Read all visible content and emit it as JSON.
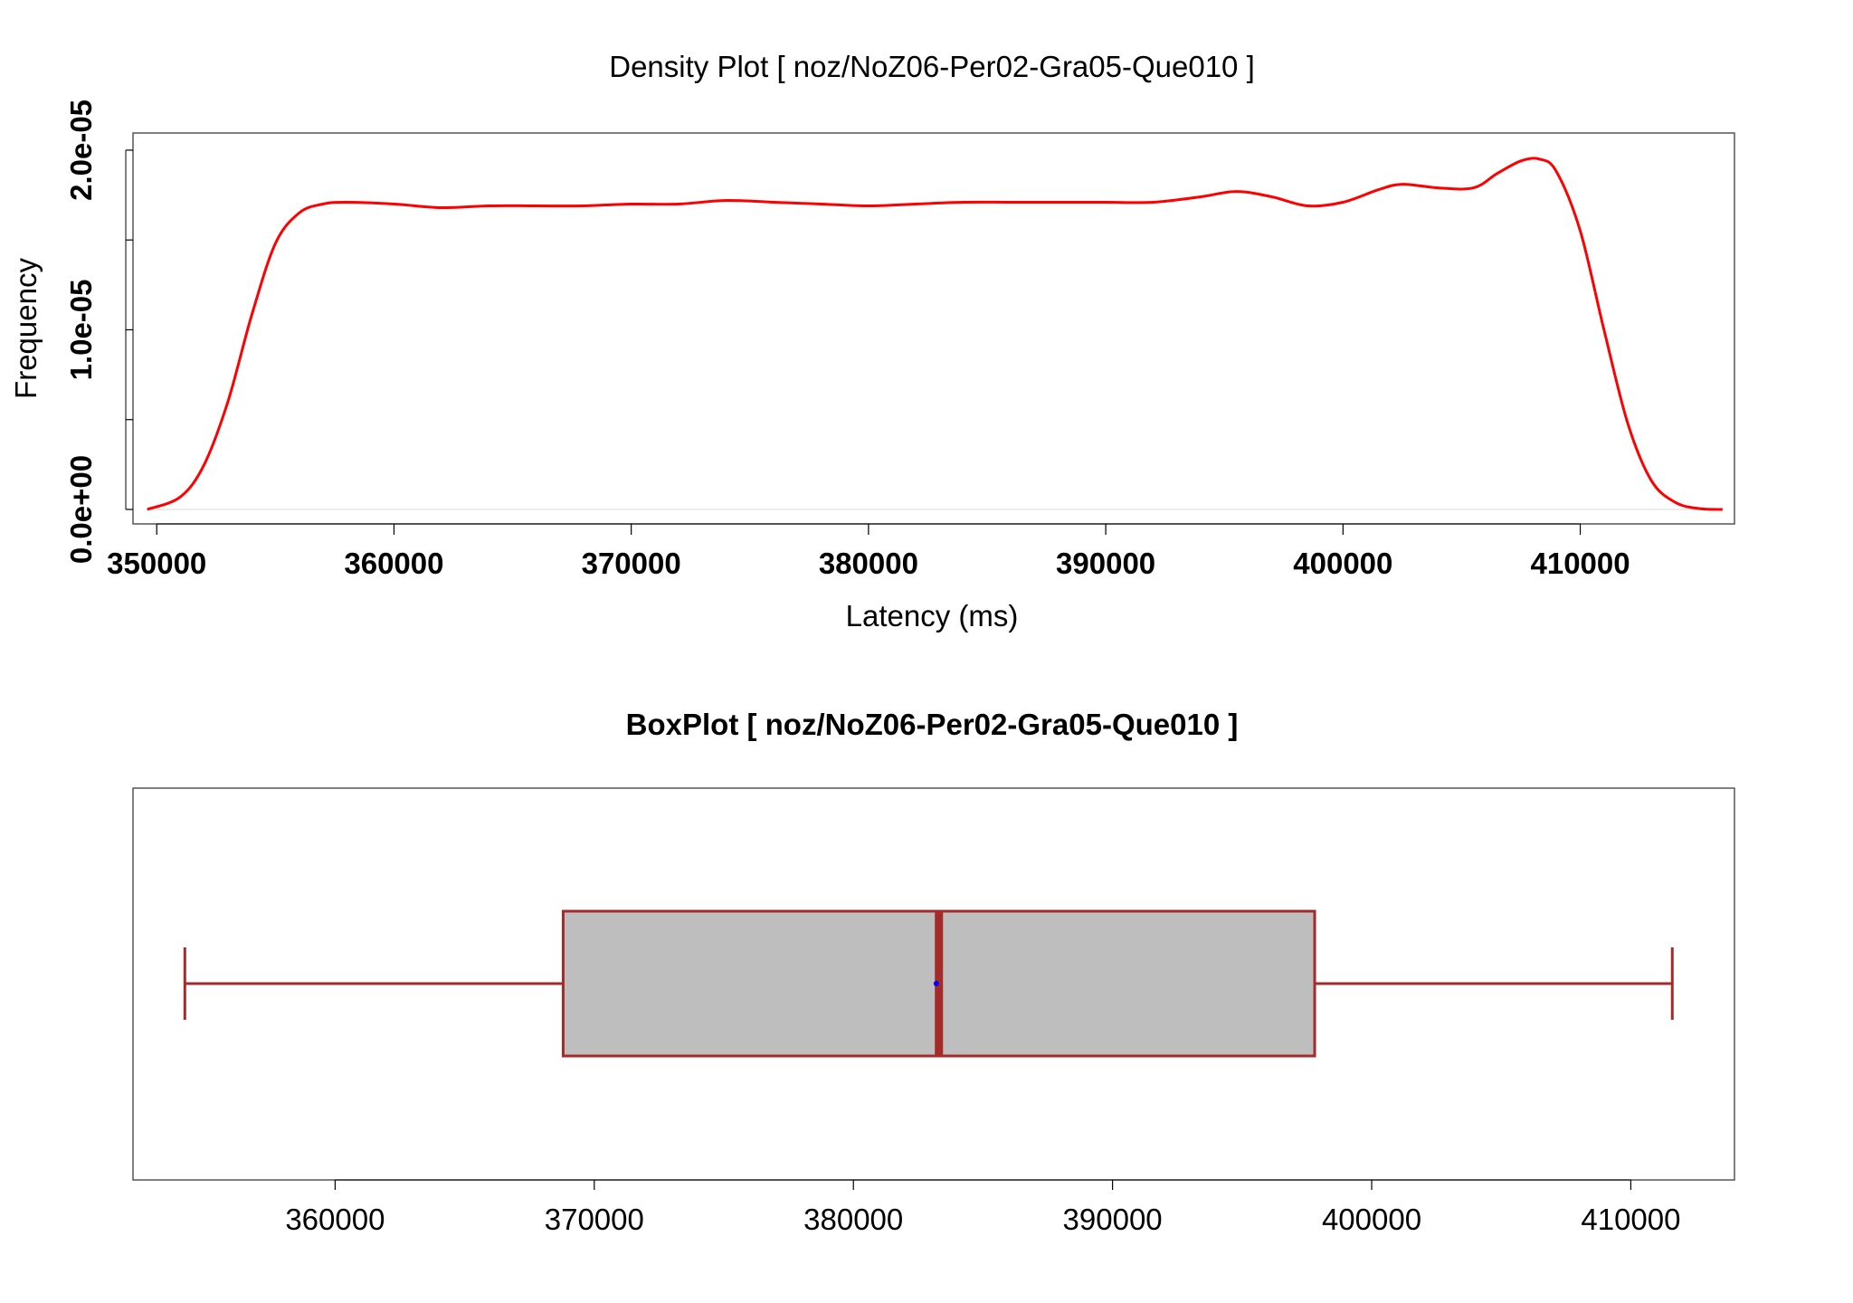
{
  "chart_data": [
    {
      "type": "line",
      "title": "Density Plot [ noz/NoZ06-Per02-Gra05-Que010 ]",
      "xlabel": "Latency (ms)",
      "ylabel": "Frequency",
      "xlim": [
        349000,
        416500
      ],
      "ylim": [
        0,
        2.05e-05
      ],
      "x_ticks": [
        350000,
        360000,
        370000,
        380000,
        390000,
        400000,
        410000
      ],
      "x_tick_labels": [
        "350000",
        "360000",
        "370000",
        "380000",
        "390000",
        "400000",
        "410000"
      ],
      "y_ticks": [
        0,
        5e-06,
        1e-05,
        1.5e-05,
        2e-05
      ],
      "y_tick_labels": [
        "0.0e+00",
        "",
        "1.0e-05",
        "",
        "2.0e-05"
      ],
      "grid": false,
      "color": "#ff0000",
      "series": [
        {
          "x": [
            349600,
            351000,
            352000,
            353000,
            354000,
            355000,
            356000,
            357000,
            358000,
            360000,
            362000,
            364000,
            366000,
            368000,
            370000,
            372000,
            374000,
            376000,
            378000,
            380000,
            382000,
            384000,
            386000,
            388000,
            390000,
            392000,
            394000,
            395500,
            397000,
            398500,
            400000,
            401500,
            402500,
            404000,
            405500,
            406500,
            407500,
            408300,
            409000,
            410000,
            411000,
            412000,
            413000,
            414000,
            415000,
            416000
          ],
          "y": [
            0.0,
            7e-07,
            2.5e-06,
            6e-06,
            1.08e-05,
            1.48e-05,
            1.65e-05,
            1.7e-05,
            1.71e-05,
            1.7e-05,
            1.68e-05,
            1.69e-05,
            1.69e-05,
            1.69e-05,
            1.7e-05,
            1.7e-05,
            1.72e-05,
            1.71e-05,
            1.7e-05,
            1.69e-05,
            1.7e-05,
            1.71e-05,
            1.71e-05,
            1.71e-05,
            1.71e-05,
            1.71e-05,
            1.74e-05,
            1.77e-05,
            1.74e-05,
            1.69e-05,
            1.71e-05,
            1.78e-05,
            1.81e-05,
            1.79e-05,
            1.79e-05,
            1.87e-05,
            1.94e-05,
            1.95e-05,
            1.88e-05,
            1.55e-05,
            1e-05,
            4.8e-06,
            1.6e-06,
            4e-07,
            5e-08,
            0.0
          ]
        }
      ]
    },
    {
      "type": "box",
      "title": "BoxPlot [ noz/NoZ06-Per02-Gra05-Que010 ]",
      "xlim": [
        352200,
        414000
      ],
      "x_ticks": [
        360000,
        370000,
        380000,
        390000,
        400000,
        410000
      ],
      "x_tick_labels": [
        "360000",
        "370000",
        "380000",
        "390000",
        "400000",
        "410000"
      ],
      "grid": false,
      "box": {
        "whisker_low": 354200,
        "q1": 368800,
        "median": 383300,
        "mean": 383200,
        "q3": 397800,
        "whisker_high": 411600
      },
      "box_fill": "#bebebe",
      "line_color": "#a52a2a",
      "mean_color": "#0000ff"
    }
  ]
}
